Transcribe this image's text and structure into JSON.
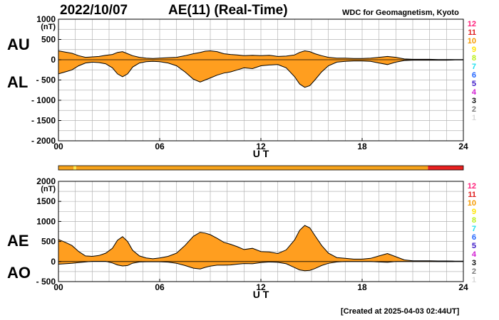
{
  "header": {
    "date": "2022/10/07",
    "title": "AE(11) (Real-Time)",
    "source": "WDC for Geomagnetism, Kyoto"
  },
  "footer": {
    "created": "[Created at 2025-04-03 02:44UT]"
  },
  "colors": {
    "fill": "#ff9e1f",
    "line": "#000000",
    "grid": "#b4b4b4",
    "bar_orange": "#f5a21a",
    "bar_red": "#e8201f",
    "bar_yellow": "#ffe84a"
  },
  "station_count_legend": [
    {
      "label": "12",
      "color": "#ff1f7a"
    },
    {
      "label": "11",
      "color": "#e02020"
    },
    {
      "label": "10",
      "color": "#f59a00"
    },
    {
      "label": "9",
      "color": "#ffe400"
    },
    {
      "label": "8",
      "color": "#b9ef1a"
    },
    {
      "label": "7",
      "color": "#20e0ef"
    },
    {
      "label": "6",
      "color": "#1f63ff"
    },
    {
      "label": "5",
      "color": "#3b17c7"
    },
    {
      "label": "4",
      "color": "#d21ed2"
    },
    {
      "label": "3",
      "color": "#111111"
    },
    {
      "label": "2",
      "color": "#7a7a7a"
    },
    {
      "label": "1",
      "color": "#d9d9d9"
    }
  ],
  "chart_data": [
    {
      "type": "area",
      "panel": "top",
      "series_labels": [
        "AU",
        "AL"
      ],
      "ylabel": "(nT)",
      "xlabel": "U T",
      "xlim": [
        0,
        24
      ],
      "ylim": [
        -2000,
        1000
      ],
      "xticks": [
        "00",
        "06",
        "12",
        "18",
        "24"
      ],
      "yticks": [
        "1000",
        "500",
        "0",
        "- 500",
        "- 1000",
        "- 1500",
        "- 2000"
      ],
      "grid": true,
      "series": [
        {
          "name": "AU",
          "x": [
            0,
            0.4,
            0.8,
            1.2,
            1.6,
            2.0,
            2.4,
            2.8,
            3.2,
            3.5,
            3.8,
            4.1,
            4.4,
            4.8,
            5.2,
            5.6,
            6.0,
            6.5,
            7.0,
            7.5,
            8.0,
            8.4,
            8.7,
            9.0,
            9.4,
            9.8,
            10.2,
            10.6,
            11.0,
            11.5,
            12.0,
            12.5,
            13.0,
            13.5,
            14.0,
            14.3,
            14.6,
            14.9,
            15.2,
            15.6,
            16.0,
            16.5,
            17.0,
            17.5,
            18.0,
            18.5,
            19.0,
            19.5,
            20.0,
            20.5,
            21.0,
            21.5,
            22.0,
            22.5,
            23.0,
            23.5,
            24.0
          ],
          "values": [
            220,
            190,
            160,
            100,
            60,
            70,
            80,
            110,
            130,
            180,
            200,
            150,
            100,
            60,
            40,
            30,
            40,
            50,
            60,
            100,
            150,
            180,
            210,
            220,
            200,
            150,
            130,
            120,
            100,
            110,
            100,
            110,
            80,
            90,
            120,
            180,
            220,
            200,
            150,
            100,
            60,
            40,
            40,
            30,
            30,
            40,
            60,
            80,
            60,
            20,
            10,
            10,
            10,
            5,
            5,
            5,
            5
          ]
        },
        {
          "name": "AL",
          "x": [
            0,
            0.4,
            0.8,
            1.2,
            1.6,
            2.0,
            2.4,
            2.8,
            3.2,
            3.5,
            3.8,
            4.1,
            4.4,
            4.8,
            5.2,
            5.6,
            6.0,
            6.5,
            7.0,
            7.5,
            8.0,
            8.4,
            8.7,
            9.0,
            9.4,
            9.8,
            10.2,
            10.6,
            11.0,
            11.5,
            12.0,
            12.5,
            13.0,
            13.5,
            14.0,
            14.3,
            14.6,
            14.9,
            15.2,
            15.6,
            16.0,
            16.5,
            17.0,
            17.5,
            18.0,
            18.5,
            19.0,
            19.5,
            20.0,
            20.5,
            21.0,
            21.5,
            22.0,
            22.5,
            23.0,
            23.5,
            24.0
          ],
          "values": [
            -350,
            -300,
            -250,
            -150,
            -80,
            -60,
            -70,
            -100,
            -200,
            -350,
            -420,
            -350,
            -180,
            -80,
            -50,
            -40,
            -50,
            -80,
            -150,
            -300,
            -480,
            -550,
            -500,
            -450,
            -380,
            -330,
            -300,
            -250,
            -200,
            -220,
            -150,
            -130,
            -120,
            -200,
            -420,
            -600,
            -680,
            -640,
            -500,
            -300,
            -150,
            -60,
            -40,
            -30,
            -30,
            -40,
            -80,
            -120,
            -60,
            -20,
            -10,
            -10,
            -10,
            -10,
            -10,
            -5,
            -5
          ]
        }
      ]
    },
    {
      "type": "area",
      "panel": "bottom",
      "series_labels": [
        "AE",
        "AO"
      ],
      "ylabel": "(nT)",
      "xlabel": "U T",
      "xlim": [
        0,
        24
      ],
      "ylim": [
        -500,
        2000
      ],
      "xticks": [
        "00",
        "06",
        "12",
        "18",
        "24"
      ],
      "yticks": [
        "2000",
        "1500",
        "1000",
        "500",
        "0",
        "- 500"
      ],
      "grid": true,
      "series": [
        {
          "name": "AE",
          "x": [
            0,
            0.4,
            0.8,
            1.2,
            1.6,
            2.0,
            2.4,
            2.8,
            3.2,
            3.5,
            3.8,
            4.1,
            4.4,
            4.8,
            5.2,
            5.6,
            6.0,
            6.5,
            7.0,
            7.5,
            8.0,
            8.4,
            8.7,
            9.0,
            9.4,
            9.8,
            10.2,
            10.6,
            11.0,
            11.5,
            12.0,
            12.5,
            13.0,
            13.5,
            14.0,
            14.3,
            14.6,
            14.9,
            15.2,
            15.6,
            16.0,
            16.5,
            17.0,
            17.5,
            18.0,
            18.5,
            19.0,
            19.5,
            20.0,
            20.5,
            21.0,
            21.5,
            22.0,
            22.5,
            23.0,
            23.5,
            24.0
          ],
          "values": [
            550,
            480,
            400,
            250,
            140,
            130,
            150,
            210,
            330,
            530,
            620,
            500,
            280,
            140,
            90,
            70,
            90,
            130,
            210,
            400,
            630,
            730,
            710,
            670,
            580,
            480,
            430,
            370,
            300,
            330,
            250,
            240,
            200,
            290,
            540,
            780,
            900,
            840,
            650,
            400,
            210,
            100,
            80,
            60,
            60,
            80,
            140,
            200,
            120,
            40,
            20,
            20,
            20,
            15,
            15,
            10,
            10
          ]
        },
        {
          "name": "AO",
          "x": [
            0,
            0.4,
            0.8,
            1.2,
            1.6,
            2.0,
            2.4,
            2.8,
            3.2,
            3.5,
            3.8,
            4.1,
            4.4,
            4.8,
            5.2,
            5.6,
            6.0,
            6.5,
            7.0,
            7.5,
            8.0,
            8.4,
            8.7,
            9.0,
            9.4,
            9.8,
            10.2,
            10.6,
            11.0,
            11.5,
            12.0,
            12.5,
            13.0,
            13.5,
            14.0,
            14.3,
            14.6,
            14.9,
            15.2,
            15.6,
            16.0,
            16.5,
            17.0,
            17.5,
            18.0,
            18.5,
            19.0,
            19.5,
            20.0,
            20.5,
            21.0,
            21.5,
            22.0,
            22.5,
            23.0,
            23.5,
            24.0
          ],
          "values": [
            -65,
            -55,
            -45,
            -25,
            -10,
            5,
            5,
            5,
            -35,
            -85,
            -110,
            -100,
            -40,
            -10,
            -5,
            -5,
            -5,
            -15,
            -45,
            -100,
            -165,
            -185,
            -145,
            -115,
            -90,
            -90,
            -85,
            -65,
            -50,
            -55,
            -25,
            -10,
            -20,
            -55,
            -150,
            -210,
            -230,
            -220,
            -175,
            -100,
            -45,
            -10,
            0,
            0,
            0,
            0,
            -10,
            -20,
            0,
            0,
            0,
            0,
            0,
            -2,
            -2,
            0,
            0
          ]
        }
      ]
    }
  ],
  "station_bar": [
    {
      "from": 0,
      "to": 0.9,
      "count": "10"
    },
    {
      "from": 0.9,
      "to": 1.05,
      "count": "9"
    },
    {
      "from": 1.05,
      "to": 21.9,
      "count": "10"
    },
    {
      "from": 21.9,
      "to": 24,
      "count": "11"
    }
  ]
}
